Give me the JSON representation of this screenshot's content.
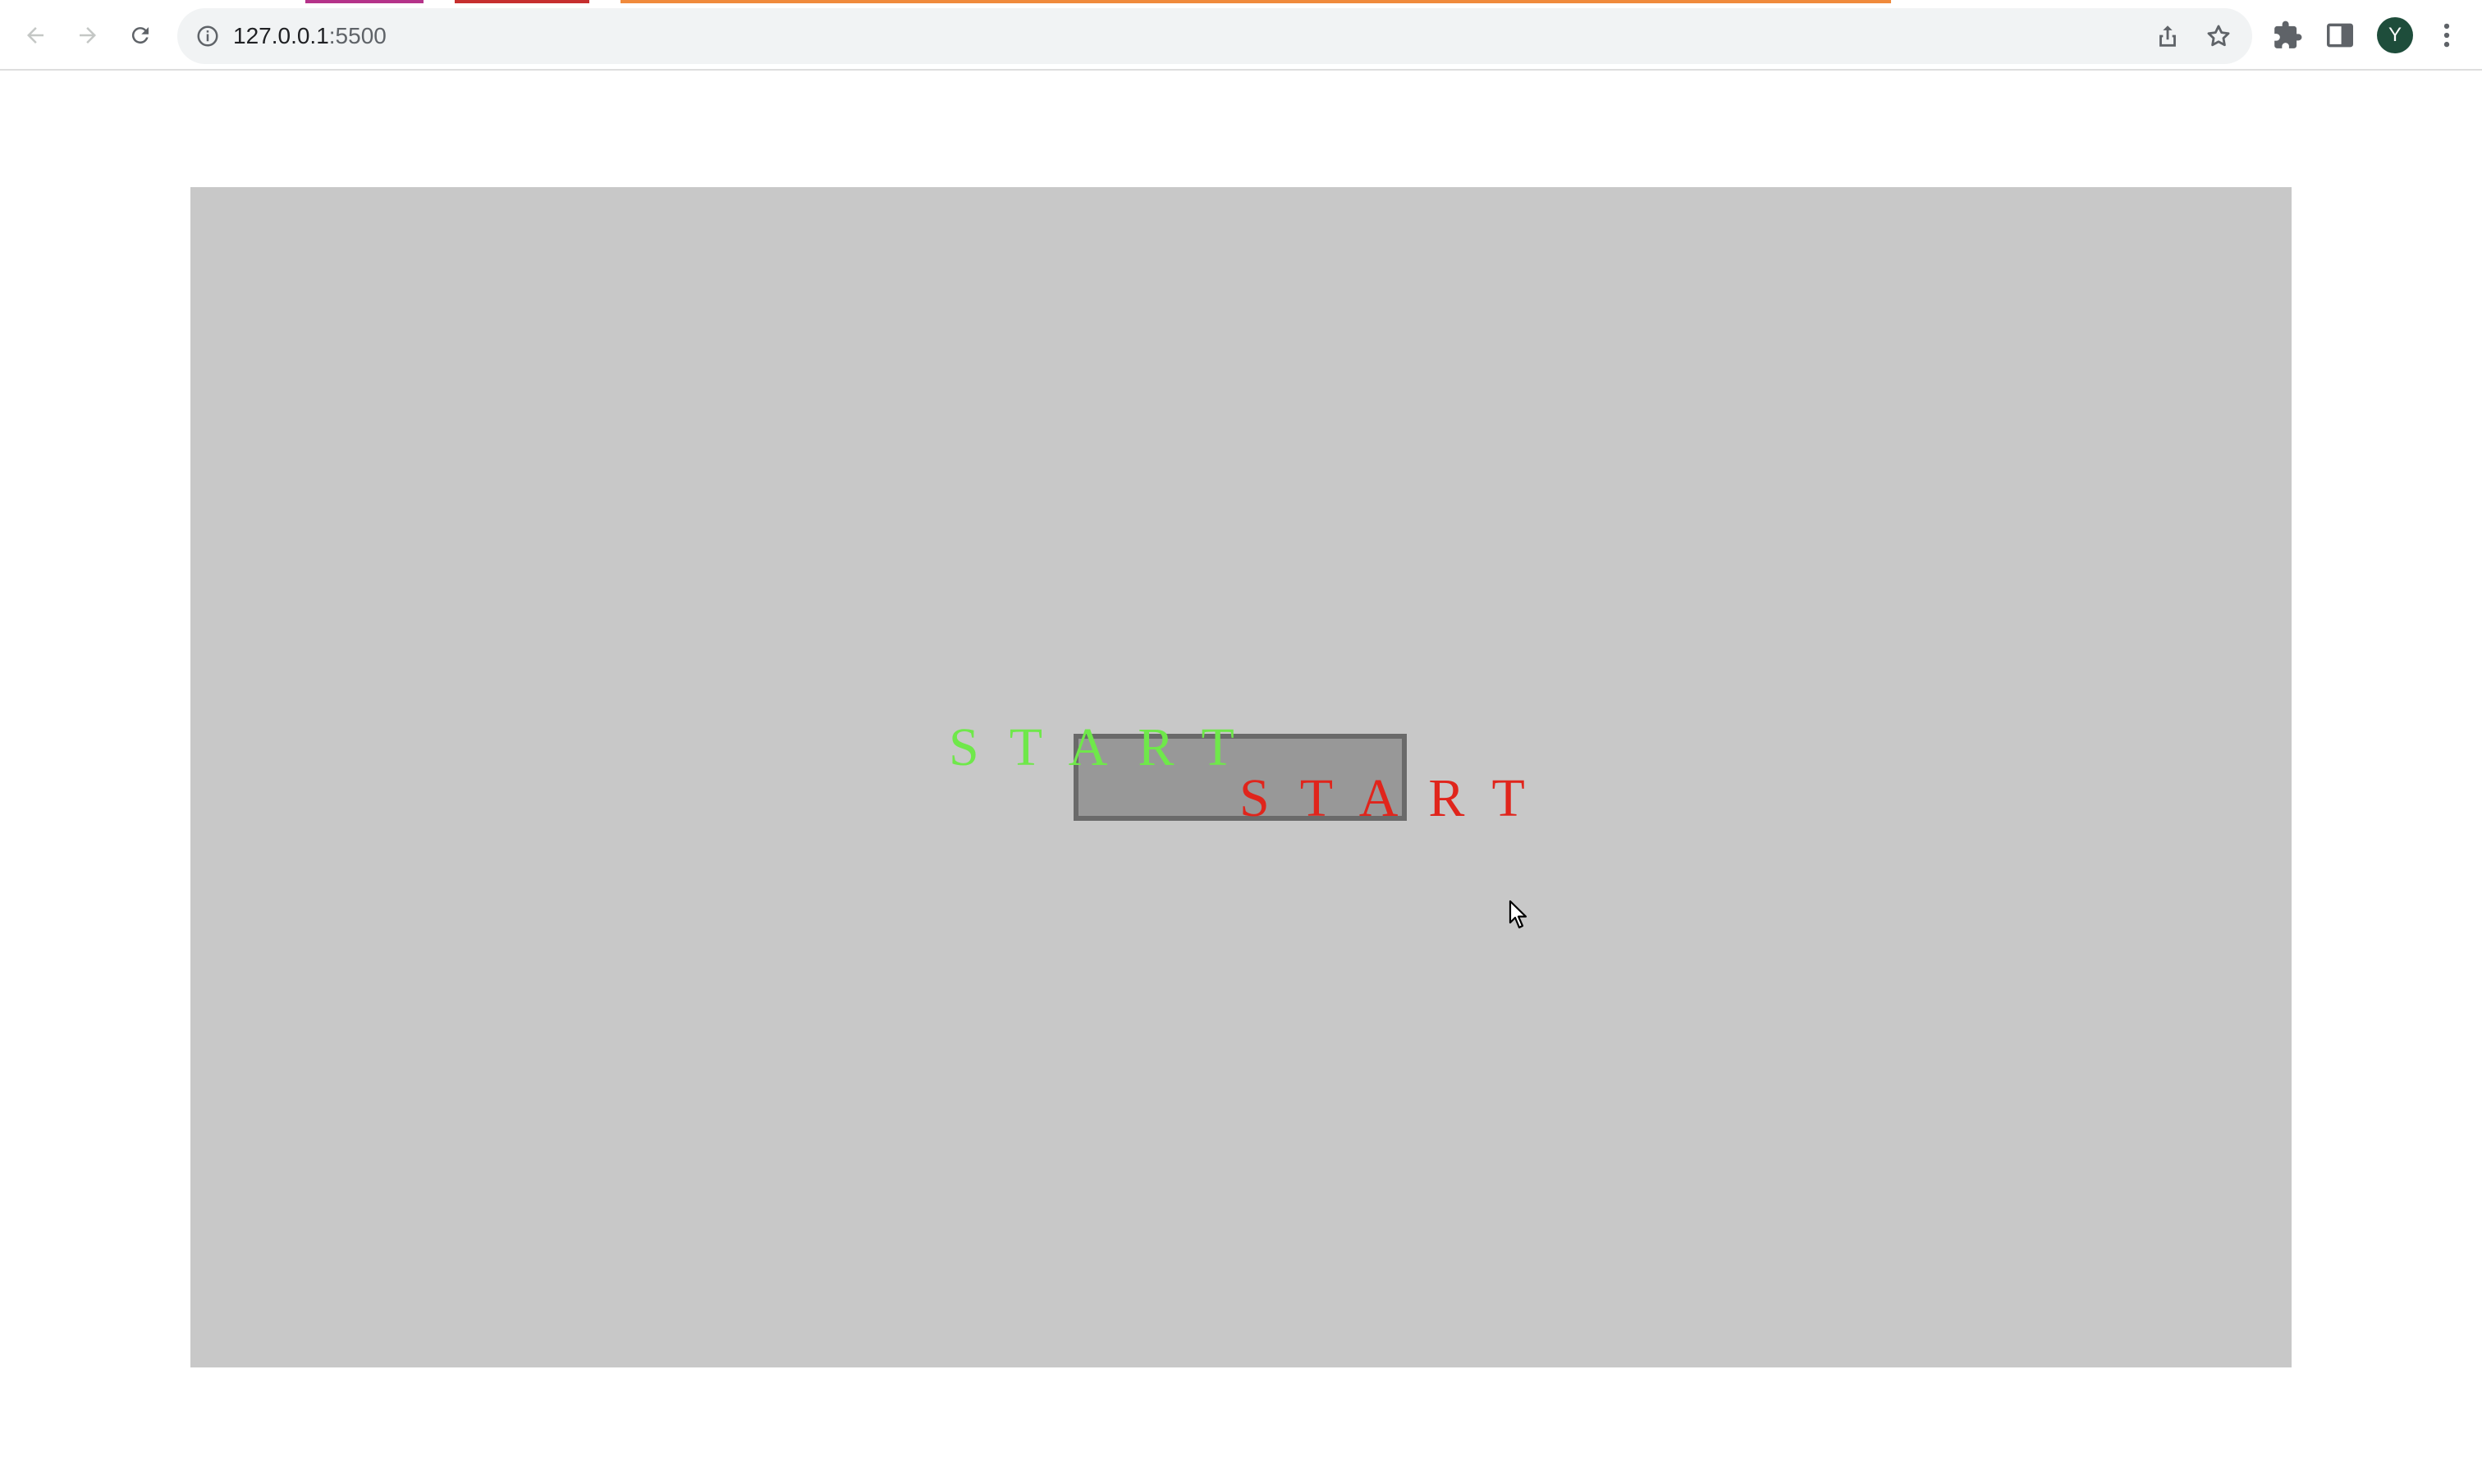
{
  "browser": {
    "url_host": "127.0.0.1",
    "url_port": ":5500",
    "profile_initial": "Y",
    "tab_accent_colors": [
      "#b5338a",
      "#c62f2f",
      "#f08a3c"
    ],
    "icons": {
      "back": "arrow-left-icon",
      "forward": "arrow-right-icon",
      "reload": "reload-icon",
      "site_info": "info-icon",
      "share": "share-icon",
      "bookmark": "star-icon",
      "extensions": "puzzle-icon",
      "side_panel": "side-panel-icon",
      "menu": "kebab-menu-icon"
    }
  },
  "game": {
    "background_color": "#c8c8c8",
    "button_fill": "#989898",
    "button_border": "#6a6a6a",
    "label_green": "START",
    "label_green_color": "#6fe84a",
    "label_red": "START",
    "label_red_color": "#e0251c"
  }
}
